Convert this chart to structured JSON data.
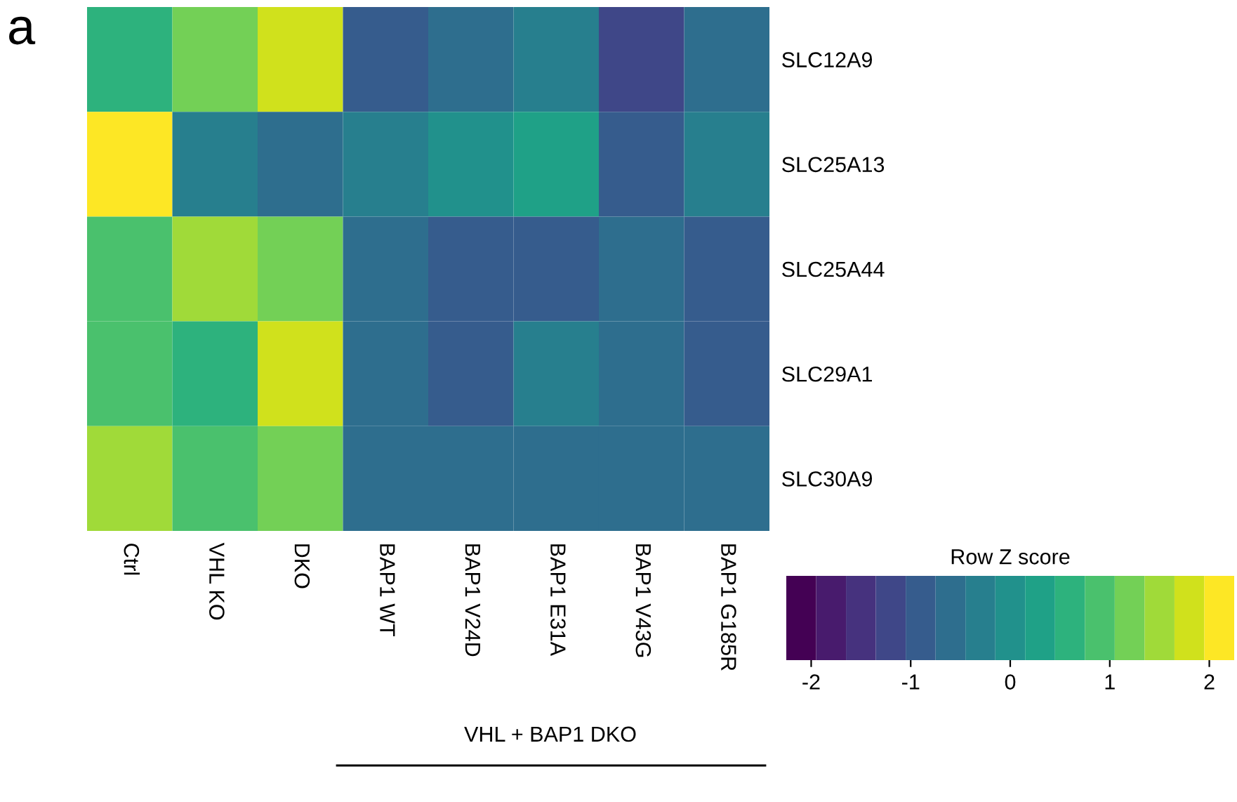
{
  "chart_data": {
    "type": "heatmap",
    "categories": [
      "Ctrl",
      "VHL KO",
      "DKO",
      "BAP1 WT",
      "BAP1 V24D",
      "BAP1 E31A",
      "BAP1 V43G",
      "BAP1 G185R"
    ],
    "y_categories": [
      "SLC12A9",
      "SLC25A13",
      "SLC25A44",
      "SLC29A1",
      "SLC30A9"
    ],
    "cells": [
      [
        0.6,
        1.2,
        1.8,
        -0.9,
        -0.6,
        -0.3,
        -1.2,
        -0.6
      ],
      [
        2.1,
        -0.3,
        -0.6,
        -0.3,
        0.0,
        0.3,
        -0.9,
        -0.3
      ],
      [
        0.9,
        1.5,
        1.2,
        -0.6,
        -0.9,
        -0.9,
        -0.6,
        -0.9
      ],
      [
        0.9,
        0.6,
        1.8,
        -0.6,
        -0.9,
        -0.3,
        -0.6,
        -0.9
      ],
      [
        1.5,
        0.9,
        1.2,
        -0.6,
        -0.6,
        -0.6,
        -0.6,
        -0.6
      ]
    ],
    "clim": [
      -2.25,
      2.25
    ],
    "cticks": [
      -2,
      -1,
      0,
      1,
      2
    ],
    "clabel": "Row Z score",
    "annotations": [
      "a",
      "VHL + BAP1 DKO"
    ]
  }
}
